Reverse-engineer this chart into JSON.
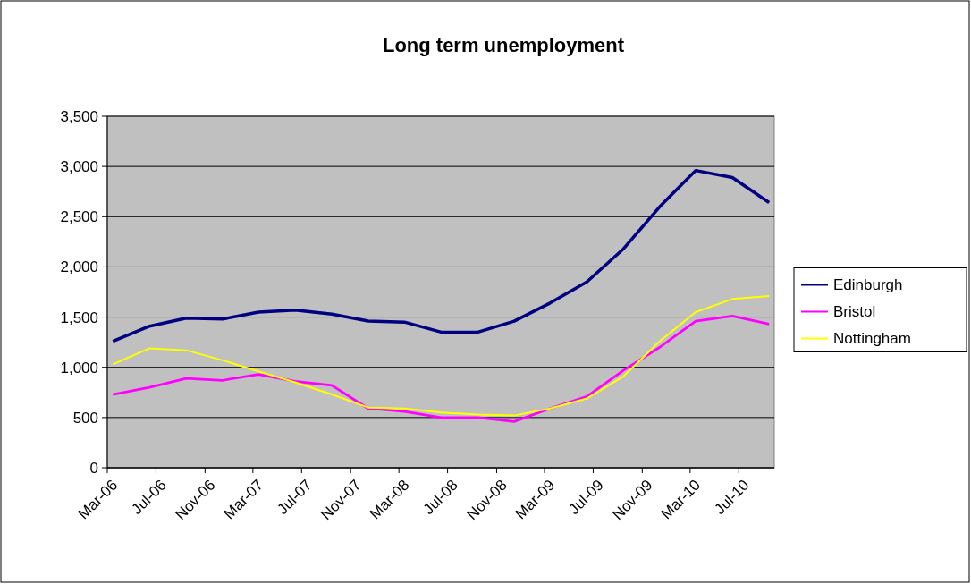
{
  "chart_data": {
    "type": "line",
    "title": "Long term unemployment",
    "x": [
      "2006-03-15",
      "2006-06-15",
      "2006-09-15",
      "2006-12-15",
      "2007-03-15",
      "2007-06-15",
      "2007-09-15",
      "2007-12-15",
      "2008-03-15",
      "2008-06-15",
      "2008-09-15",
      "2008-12-15",
      "2009-03-15",
      "2009-06-15",
      "2009-09-15",
      "2009-12-15",
      "2010-03-15",
      "2010-06-15",
      "2010-09-15"
    ],
    "series": [
      {
        "name": "Edinburgh",
        "color": "#000080",
        "values": [
          1260,
          1410,
          1490,
          1480,
          1550,
          1570,
          1530,
          1460,
          1450,
          1350,
          1350,
          1460,
          1640,
          1850,
          2180,
          2600,
          2960,
          2890,
          2640
        ]
      },
      {
        "name": "Bristol",
        "color": "#ff00ff",
        "values": [
          730,
          800,
          890,
          870,
          930,
          860,
          820,
          590,
          560,
          500,
          500,
          460,
          590,
          710,
          970,
          1200,
          1460,
          1510,
          1430
        ]
      },
      {
        "name": "Nottingham",
        "color": "#ffff00",
        "values": [
          1030,
          1190,
          1170,
          1070,
          960,
          850,
          730,
          600,
          590,
          550,
          530,
          520,
          590,
          690,
          910,
          1260,
          1550,
          1680,
          1710
        ]
      }
    ],
    "xlim": [
      "2006-03-01",
      "2010-09-28"
    ],
    "xticks": [
      {
        "value": "2006-03-01",
        "label": "Mar-06"
      },
      {
        "value": "2006-07-01",
        "label": "Jul-06"
      },
      {
        "value": "2006-11-01",
        "label": "Nov-06"
      },
      {
        "value": "2007-03-01",
        "label": "Mar-07"
      },
      {
        "value": "2007-07-01",
        "label": "Jul-07"
      },
      {
        "value": "2007-11-01",
        "label": "Nov-07"
      },
      {
        "value": "2008-03-01",
        "label": "Mar-08"
      },
      {
        "value": "2008-07-01",
        "label": "Jul-08"
      },
      {
        "value": "2008-11-01",
        "label": "Nov-08"
      },
      {
        "value": "2009-03-01",
        "label": "Mar-09"
      },
      {
        "value": "2009-07-01",
        "label": "Jul-09"
      },
      {
        "value": "2009-11-01",
        "label": "Nov-09"
      },
      {
        "value": "2010-03-01",
        "label": "Mar-10"
      },
      {
        "value": "2010-07-01",
        "label": "Jul-10"
      }
    ],
    "ylim": [
      0,
      3500
    ],
    "yticks": [
      {
        "value": 0,
        "label": "0"
      },
      {
        "value": 500,
        "label": "500"
      },
      {
        "value": 1000,
        "label": "1,000"
      },
      {
        "value": 1500,
        "label": "1,500"
      },
      {
        "value": 2000,
        "label": "2,000"
      },
      {
        "value": 2500,
        "label": "2,500"
      },
      {
        "value": 3000,
        "label": "3,000"
      },
      {
        "value": 3500,
        "label": "3,500"
      }
    ],
    "grid": "y",
    "legend": "right",
    "marker": "none",
    "line_style": "solid"
  }
}
